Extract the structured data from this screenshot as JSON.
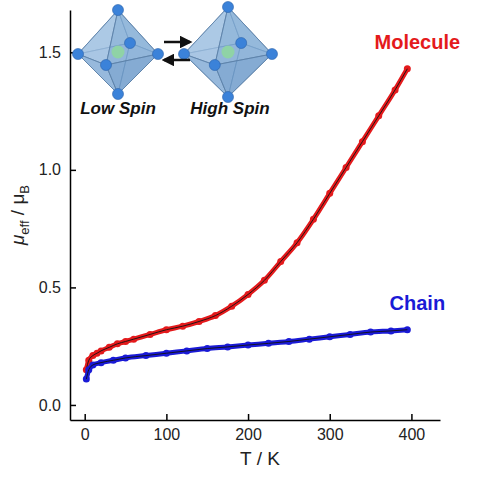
{
  "chart_data": {
    "type": "line",
    "x_label": "T / K",
    "y_label": [
      {
        "text": "μ"
      },
      {
        "text": "eff",
        "sub": true
      },
      {
        "text": " / μ"
      },
      {
        "text": "B",
        "sub": true
      }
    ],
    "annotations": [
      "Low Spin",
      "High Spin"
    ],
    "xlim": [
      -18,
      435
    ],
    "xticks": [
      0,
      100,
      200,
      300,
      400
    ],
    "ylim": [
      -0.064,
      1.68
    ],
    "yticks": [
      {
        "value": 0,
        "label": "0.0"
      },
      {
        "value": 0.5,
        "label": "0.5"
      },
      {
        "value": 1,
        "label": "1.0"
      },
      {
        "value": 1.5,
        "label": "1.5"
      }
    ],
    "series": [
      {
        "name": "Molecule",
        "color": "#e41a1c",
        "marker": "circle",
        "line_style": "solid",
        "x": [
          2,
          5,
          10,
          15,
          20,
          30,
          40,
          50,
          60,
          80,
          100,
          120,
          140,
          160,
          180,
          200,
          220,
          240,
          260,
          280,
          300,
          320,
          340,
          360,
          380,
          395
        ],
        "values": [
          0.15,
          0.19,
          0.21,
          0.22,
          0.23,
          0.245,
          0.26,
          0.27,
          0.28,
          0.3,
          0.32,
          0.335,
          0.355,
          0.38,
          0.42,
          0.47,
          0.53,
          0.61,
          0.69,
          0.79,
          0.9,
          1.01,
          1.12,
          1.23,
          1.34,
          1.43
        ]
      },
      {
        "name": "Chain",
        "color": "#1a1ad6",
        "marker": "circle",
        "line_style": "solid",
        "x": [
          2,
          5,
          10,
          20,
          35,
          50,
          75,
          100,
          125,
          150,
          175,
          200,
          225,
          250,
          275,
          300,
          325,
          350,
          375,
          395
        ],
        "values": [
          0.11,
          0.15,
          0.17,
          0.18,
          0.19,
          0.2,
          0.21,
          0.22,
          0.23,
          0.24,
          0.247,
          0.255,
          0.262,
          0.27,
          0.28,
          0.29,
          0.3,
          0.31,
          0.315,
          0.32
        ]
      }
    ]
  }
}
